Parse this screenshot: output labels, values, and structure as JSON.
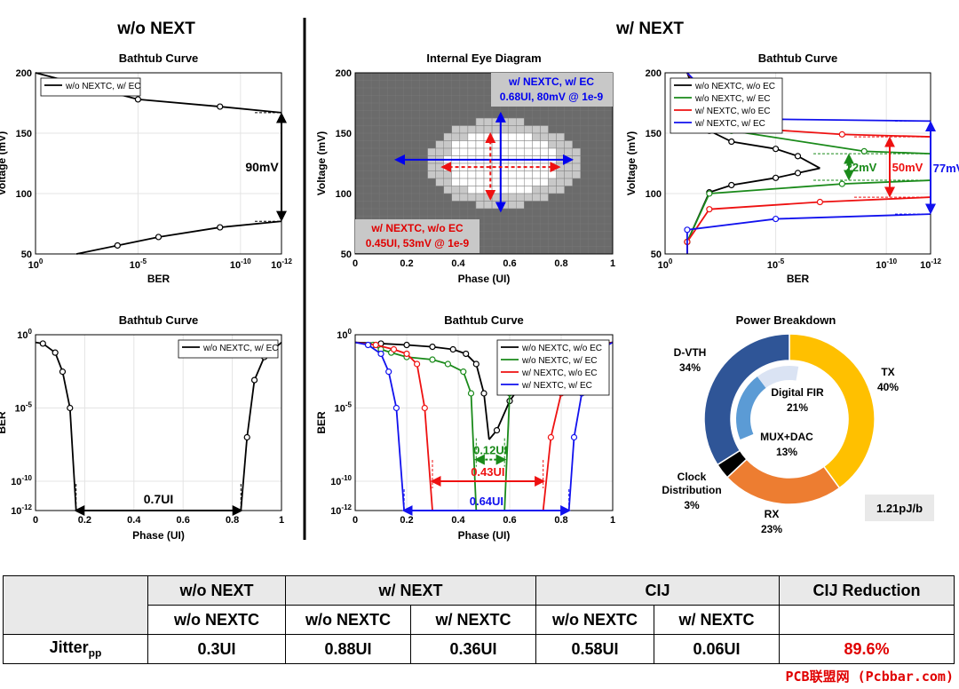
{
  "sections": {
    "left_title": "w/o NEXT",
    "right_title": "w/ NEXT"
  },
  "chart_data": [
    {
      "id": "c1",
      "type": "line",
      "title": "Bathtub Curve",
      "xlabel": "BER",
      "ylabel": "Voltage (mV)",
      "x_axis": "log-reversed",
      "xlim": [
        1,
        1e-12
      ],
      "ylim": [
        50,
        200
      ],
      "x_ticks": [
        "10^0",
        "10^-5",
        "10^-10",
        "10^-12"
      ],
      "y_ticks": [
        50,
        100,
        150,
        200
      ],
      "grid": true,
      "legend": "top-left",
      "series": [
        {
          "name": "w/o NEXTC, w/ EC",
          "color": "#000000",
          "upper": [
            [
              1.0,
              200
            ],
            [
              1e-05,
              178
            ],
            [
              1e-09,
              172
            ],
            [
              1e-12,
              167
            ]
          ],
          "lower": [
            [
              1e-12,
              77
            ],
            [
              1e-09,
              72
            ],
            [
              1e-06,
              64
            ],
            [
              0.0001,
              57
            ],
            [
              0.01,
              50
            ]
          ]
        }
      ],
      "annotation": {
        "text": "90mV",
        "top": 167,
        "bottom": 77
      }
    },
    {
      "id": "c2",
      "type": "heatmap",
      "title": "Internal Eye Diagram",
      "xlabel": "Phase (UI)",
      "ylabel": "Voltage (mV)",
      "xlim": [
        0,
        1
      ],
      "ylim": [
        50,
        200
      ],
      "x_ticks": [
        0,
        0.2,
        0.4,
        0.6,
        0.8,
        1
      ],
      "y_ticks": [
        50,
        100,
        150,
        200
      ],
      "annotations": [
        {
          "text_line1": "w/ NEXTC, w/ EC",
          "text_line2": "0.68UI, 80mV @ 1e-9",
          "color": "#0000ee"
        },
        {
          "text_line1": "w/ NEXTC, w/o EC",
          "text_line2": "0.45UI, 53mV @ 1e-9",
          "color": "#e00000"
        }
      ]
    },
    {
      "id": "c3",
      "type": "line",
      "title": "Bathtub Curve",
      "xlabel": "BER",
      "ylabel": "Voltage (mV)",
      "x_axis": "log-reversed",
      "xlim": [
        1,
        1e-12
      ],
      "ylim": [
        50,
        200
      ],
      "x_ticks": [
        "10^0",
        "10^-5",
        "10^-10",
        "10^-12"
      ],
      "y_ticks": [
        50,
        100,
        150,
        200
      ],
      "grid": true,
      "legend": "top-left",
      "series": [
        {
          "name": "w/o NEXTC, w/o EC",
          "color": "#000000",
          "upper": [
            [
              0.1,
              200
            ],
            [
              0.01,
              152
            ],
            [
              0.001,
              143
            ],
            [
              1e-05,
              137
            ],
            [
              1e-06,
              131
            ],
            [
              1e-07,
              121
            ]
          ],
          "lower": [
            [
              1e-07,
              121
            ],
            [
              1e-06,
              117
            ],
            [
              1e-05,
              113
            ],
            [
              0.001,
              107
            ],
            [
              0.01,
              101
            ],
            [
              0.1,
              60
            ],
            [
              0.1,
              50
            ]
          ]
        },
        {
          "name": "w/o NEXTC, w/ EC",
          "color": "#1a8a1a",
          "upper": [
            [
              0.1,
              200
            ],
            [
              0.001,
              152
            ],
            [
              1e-09,
              135
            ],
            [
              1e-12,
              133
            ]
          ],
          "lower": [
            [
              1e-12,
              111
            ],
            [
              1e-08,
              108
            ],
            [
              0.01,
              100
            ],
            [
              0.1,
              60
            ],
            [
              0.1,
              50
            ]
          ]
        },
        {
          "name": "w/ NEXTC, w/o EC",
          "color": "#ee1111",
          "upper": [
            [
              0.1,
              200
            ],
            [
              0.001,
              155
            ],
            [
              1e-08,
              149
            ],
            [
              1e-12,
              147
            ]
          ],
          "lower": [
            [
              1e-12,
              97
            ],
            [
              1e-07,
              93
            ],
            [
              0.01,
              87
            ],
            [
              0.1,
              60
            ],
            [
              0.1,
              50
            ]
          ]
        },
        {
          "name": "w/ NEXTC, w/ EC",
          "color": "#1111ee",
          "upper": [
            [
              0.1,
              200
            ],
            [
              0.001,
              162
            ],
            [
              1e-12,
              160
            ]
          ],
          "lower": [
            [
              1e-12,
              83
            ],
            [
              1e-05,
              79
            ],
            [
              0.1,
              70
            ],
            [
              0.1,
              50
            ]
          ]
        }
      ],
      "annotations": [
        {
          "text": "22mV",
          "color": "#1a8a1a",
          "top": 133,
          "bottom": 111
        },
        {
          "text": "50mV",
          "color": "#ee1111",
          "top": 147,
          "bottom": 97
        },
        {
          "text": "77mV",
          "color": "#1111ee",
          "top": 160,
          "bottom": 83
        }
      ]
    },
    {
      "id": "c4",
      "type": "line",
      "title": "Bathtub Curve",
      "xlabel": "Phase (UI)",
      "ylabel": "BER",
      "y_axis": "log",
      "xlim": [
        0,
        1
      ],
      "ylim": [
        1e-12,
        1
      ],
      "x_ticks": [
        0,
        0.2,
        0.4,
        0.6,
        0.8,
        1
      ],
      "y_ticks": [
        "10^0",
        "10^-5",
        "10^-10",
        "10^-12"
      ],
      "grid": true,
      "legend": "top-right",
      "series": [
        {
          "name": "w/o NEXTC, w/ EC",
          "color": "#000000",
          "left": [
            [
              0.0,
              0.3
            ],
            [
              0.03,
              0.25
            ],
            [
              0.08,
              0.06
            ],
            [
              0.11,
              0.003
            ],
            [
              0.14,
              1e-05
            ],
            [
              0.165,
              1e-12
            ]
          ],
          "right": [
            [
              0.835,
              1e-12
            ],
            [
              0.86,
              1e-07
            ],
            [
              0.89,
              0.0008
            ],
            [
              0.93,
              0.03
            ],
            [
              1.0,
              0.3
            ]
          ]
        }
      ],
      "annotation": {
        "text": "0.7UI",
        "left": 0.165,
        "right": 0.835
      }
    },
    {
      "id": "c5",
      "type": "line",
      "title": "Bathtub Curve",
      "xlabel": "Phase (UI)",
      "ylabel": "BER",
      "y_axis": "log",
      "xlim": [
        0,
        1
      ],
      "ylim": [
        1e-12,
        1
      ],
      "x_ticks": [
        0,
        0.2,
        0.4,
        0.6,
        0.8,
        1
      ],
      "y_ticks": [
        "10^0",
        "10^-5",
        "10^-10",
        "10^-12"
      ],
      "grid": true,
      "legend": "top-right",
      "series": [
        {
          "name": "w/o NEXTC, w/o EC",
          "color": "#000000",
          "left": [
            [
              0.0,
              0.3
            ],
            [
              0.1,
              0.25
            ],
            [
              0.2,
              0.2
            ],
            [
              0.3,
              0.15
            ],
            [
              0.38,
              0.1
            ],
            [
              0.43,
              0.05
            ],
            [
              0.47,
              0.01
            ],
            [
              0.5,
              0.0001
            ],
            [
              0.52,
              7e-08
            ]
          ],
          "right": [
            [
              0.52,
              7e-08
            ],
            [
              0.55,
              3e-07
            ],
            [
              0.6,
              3e-05
            ],
            [
              0.68,
              0.003
            ],
            [
              0.8,
              0.05
            ],
            [
              0.9,
              0.2
            ],
            [
              1.0,
              0.3
            ]
          ]
        },
        {
          "name": "w/o NEXTC, w/ EC",
          "color": "#1a8a1a",
          "left": [
            [
              0.0,
              0.3
            ],
            [
              0.07,
              0.2
            ],
            [
              0.1,
              0.1
            ],
            [
              0.14,
              0.06
            ],
            [
              0.2,
              0.03
            ],
            [
              0.3,
              0.02
            ],
            [
              0.36,
              0.01
            ],
            [
              0.42,
              0.003
            ],
            [
              0.45,
              0.0001
            ],
            [
              0.47,
              1e-12
            ]
          ],
          "right": [
            [
              0.58,
              1e-12
            ],
            [
              0.6,
              0.0001
            ],
            [
              0.63,
              0.001
            ],
            [
              0.67,
              0.005
            ],
            [
              0.74,
              0.02
            ],
            [
              0.82,
              0.05
            ],
            [
              0.9,
              0.15
            ],
            [
              1.0,
              0.3
            ]
          ]
        },
        {
          "name": "w/ NEXTC, w/o EC",
          "color": "#ee1111",
          "left": [
            [
              0.0,
              0.3
            ],
            [
              0.08,
              0.2
            ],
            [
              0.15,
              0.1
            ],
            [
              0.2,
              0.05
            ],
            [
              0.24,
              0.01
            ],
            [
              0.27,
              1e-05
            ],
            [
              0.3,
              1e-12
            ]
          ],
          "right": [
            [
              0.73,
              1e-12
            ],
            [
              0.76,
              1e-07
            ],
            [
              0.8,
              0.0001
            ],
            [
              0.84,
              0.01
            ],
            [
              0.9,
              0.1
            ],
            [
              1.0,
              0.3
            ]
          ]
        },
        {
          "name": "w/ NEXTC, w/ EC",
          "color": "#1111ee",
          "left": [
            [
              0.0,
              0.3
            ],
            [
              0.05,
              0.2
            ],
            [
              0.1,
              0.05
            ],
            [
              0.13,
              0.003
            ],
            [
              0.16,
              1e-05
            ],
            [
              0.19,
              1e-12
            ]
          ],
          "right": [
            [
              0.83,
              1e-12
            ],
            [
              0.85,
              1e-07
            ],
            [
              0.88,
              0.0001
            ],
            [
              0.95,
              0.1
            ],
            [
              1.0,
              0.3
            ]
          ]
        }
      ],
      "annotations": [
        {
          "text": "0.12UI",
          "color": "#1a8a1a",
          "left": 0.47,
          "right": 0.58
        },
        {
          "text": "0.43UI",
          "color": "#ee1111",
          "left": 0.3,
          "right": 0.73
        },
        {
          "text": "0.64UI",
          "color": "#1111ee",
          "left": 0.19,
          "right": 0.83
        }
      ]
    },
    {
      "id": "c6",
      "type": "pie",
      "title": "Power Breakdown",
      "outer": [
        {
          "label": "TX",
          "value": 40,
          "pct": "40%",
          "color": "#ffc000"
        },
        {
          "label": "RX",
          "value": 23,
          "pct": "23%",
          "color": "#ed7d31"
        },
        {
          "label": "Clock Distribution",
          "value": 3,
          "pct": "3%",
          "color": "#000000"
        },
        {
          "label": "D-VTH",
          "value": 34,
          "pct": "34%",
          "color": "#2f5597"
        }
      ],
      "inner": [
        {
          "label": "Digital FIR",
          "value": 21,
          "pct": "21%",
          "color": "#5b9bd5"
        },
        {
          "label": "MUX+DAC",
          "value": 13,
          "pct": "13%",
          "color": "#dae3f3"
        }
      ],
      "total": "1.21pJ/b"
    }
  ],
  "table": {
    "header1": [
      "",
      "w/o NEXT",
      "w/ NEXT",
      "CIJ",
      "CIJ Reduction"
    ],
    "header2": [
      "w/o NEXTC",
      "w/o NEXTC",
      "w/ NEXTC",
      "w/o NEXTC",
      "w/ NEXTC"
    ],
    "row_label": "Jitter",
    "row_label_sub": "pp",
    "row_values": [
      "0.3UI",
      "0.88UI",
      "0.36UI",
      "0.58UI",
      "0.06UI",
      "89.6%"
    ]
  },
  "watermark": "PCB联盟网 (Pcbbar.com)"
}
